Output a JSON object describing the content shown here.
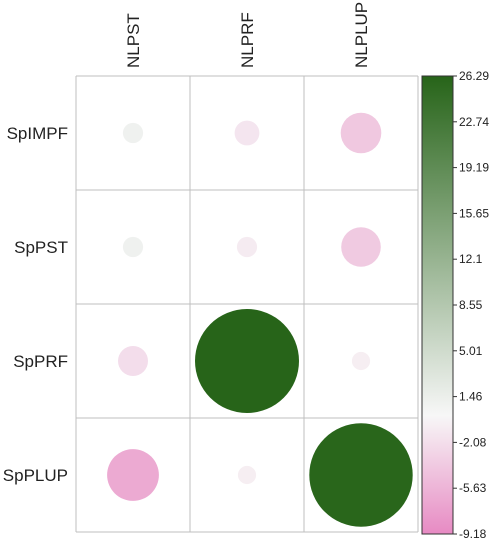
{
  "chart_data": {
    "type": "heatmap",
    "style": "correlation circle plot",
    "columns": [
      "NLPST",
      "NLPRF",
      "NLPLUP"
    ],
    "rows": [
      "SpIMPF",
      "SpPST",
      "SpPRF",
      "SpPLUP"
    ],
    "values": [
      [
        1.0,
        -1.5,
        -4.0
      ],
      [
        1.0,
        -1.0,
        -3.8
      ],
      [
        -2.2,
        26.29,
        -0.8
      ],
      [
        -6.5,
        -0.8,
        26.0
      ]
    ],
    "colorbar": {
      "min": -9.18,
      "max": 26.29,
      "ticks": [
        "26.29",
        "22.74",
        "19.19",
        "15.65",
        "12.1",
        "8.55",
        "5.01",
        "1.46",
        "-2.08",
        "-5.63",
        "-9.18"
      ],
      "colors": {
        "low": "#e78ac3",
        "mid": "#f7f7f7",
        "high": "#276419"
      }
    },
    "grid": true,
    "legend_position": "right"
  }
}
